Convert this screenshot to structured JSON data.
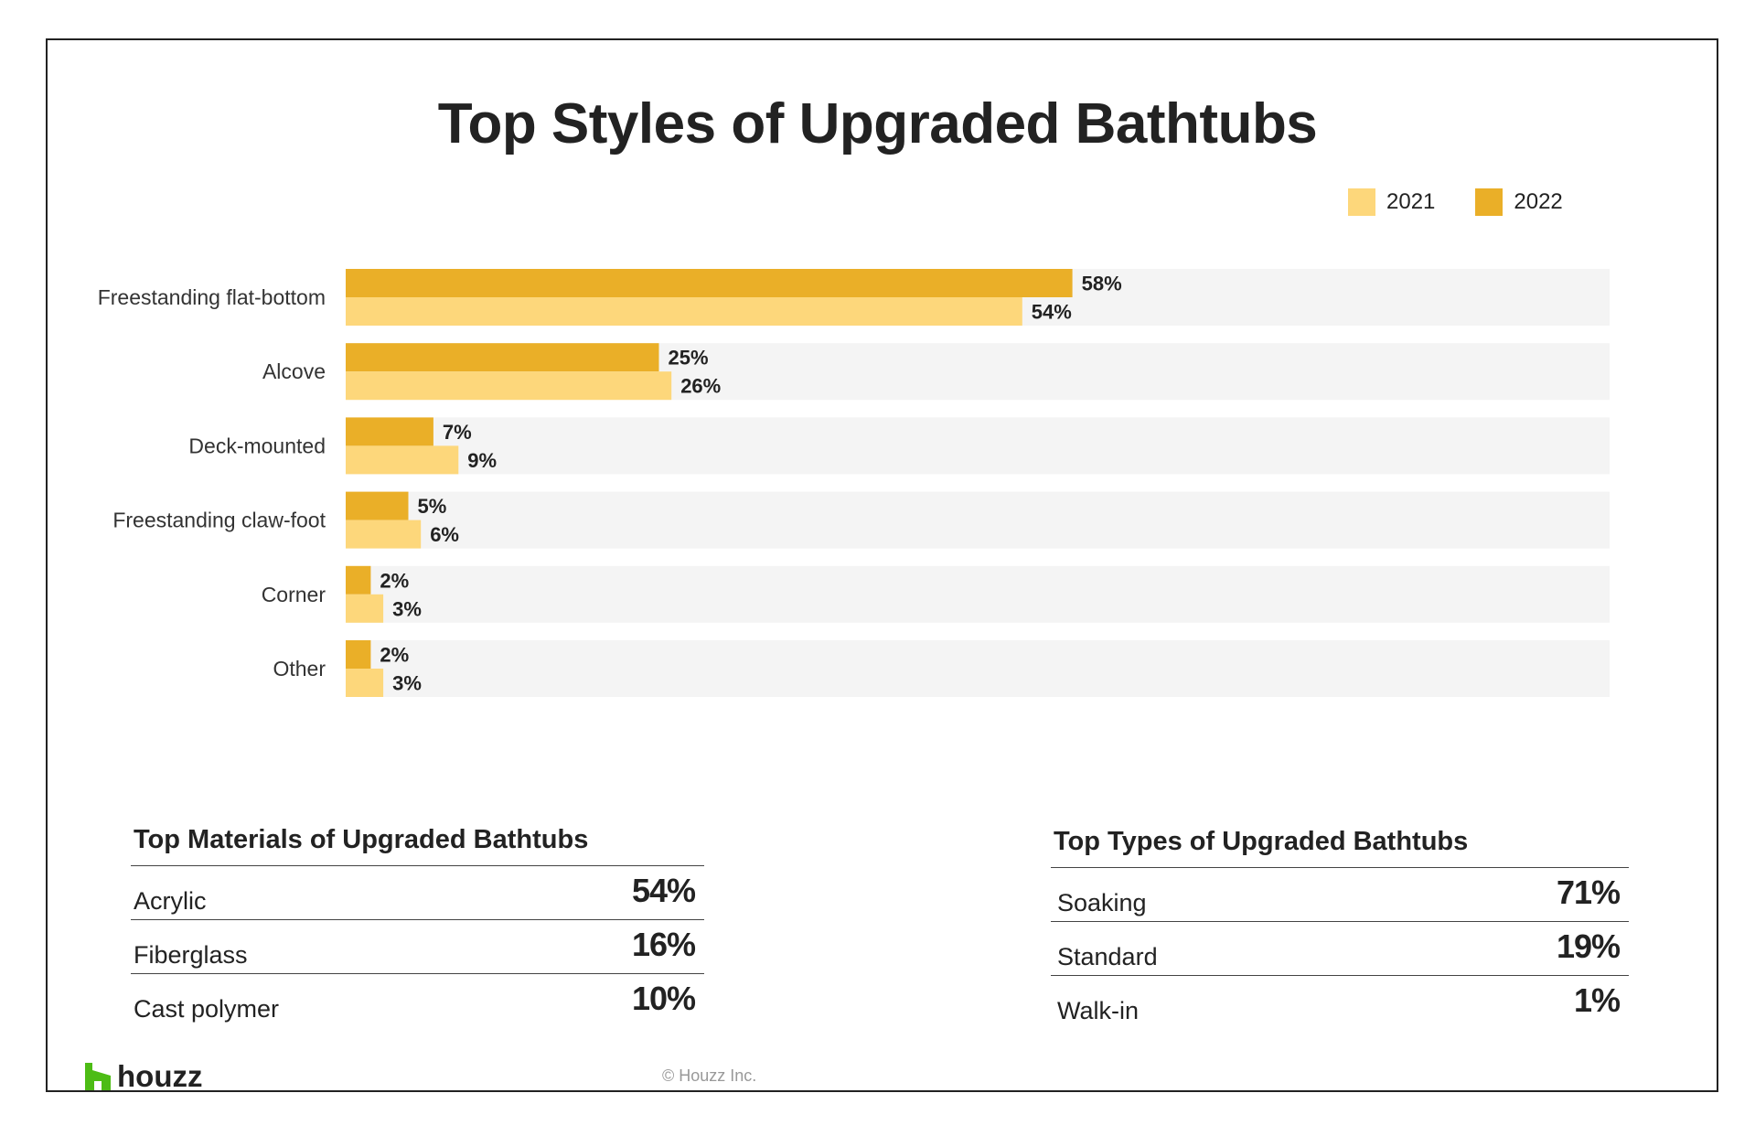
{
  "chart_data": {
    "type": "bar",
    "orientation": "horizontal",
    "title": "Top Styles of Upgraded Bathtubs",
    "categories": [
      "Freestanding flat-bottom",
      "Alcove",
      "Deck-mounted",
      "Freestanding claw-foot",
      "Corner",
      "Other"
    ],
    "series": [
      {
        "name": "2022",
        "values": [
          58,
          25,
          7,
          5,
          2,
          2
        ],
        "labels": [
          "58%",
          "25%",
          "7%",
          "5%",
          "2%",
          "2%"
        ],
        "color": "#EAAF28"
      },
      {
        "name": "2021",
        "values": [
          54,
          26,
          9,
          6,
          3,
          3
        ],
        "labels": [
          "54%",
          "26%",
          "9%",
          "6%",
          "3%",
          "3%"
        ],
        "color": "#FDD77B"
      }
    ],
    "xlim": [
      0,
      100
    ],
    "legend": "top-right",
    "grid": false,
    "background_band_color": "#F4F4F4"
  },
  "legend": [
    {
      "label": "2021",
      "color": "#FDD77B"
    },
    {
      "label": "2022",
      "color": "#EAAF28"
    }
  ],
  "materials": {
    "title": "Top Materials of Upgraded Bathtubs",
    "rows": [
      {
        "name": "Acrylic",
        "pct": "54%"
      },
      {
        "name": "Fiberglass",
        "pct": "16%"
      },
      {
        "name": "Cast polymer",
        "pct": "10%"
      }
    ]
  },
  "types": {
    "title": "Top Types of Upgraded Bathtubs",
    "rows": [
      {
        "name": "Soaking",
        "pct": "71%"
      },
      {
        "name": "Standard",
        "pct": "19%"
      },
      {
        "name": "Walk-in",
        "pct": "1%"
      }
    ]
  },
  "footer": {
    "logo_text": "houzz",
    "logo_color": "#4DBC15",
    "copyright": "© Houzz Inc."
  }
}
